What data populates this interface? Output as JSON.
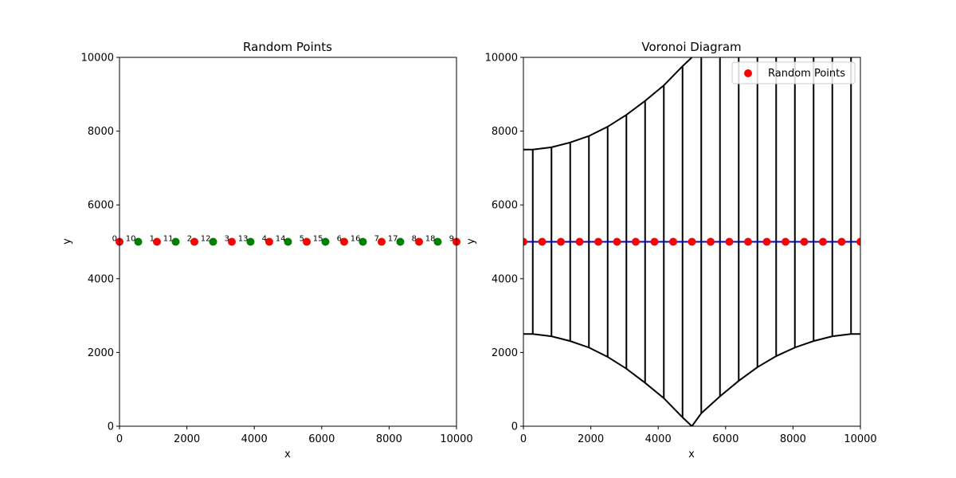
{
  "chart_data": [
    {
      "type": "scatter",
      "title": "Random Points",
      "xlabel": "x",
      "ylabel": "y",
      "xlim": [
        0,
        10000
      ],
      "ylim": [
        0,
        10000
      ],
      "xticks": [
        0,
        2000,
        4000,
        6000,
        8000,
        10000
      ],
      "yticks": [
        0,
        2000,
        4000,
        6000,
        8000,
        10000
      ],
      "grid": false,
      "series": [
        {
          "color": "#ff0000",
          "points": [
            {
              "x": 0,
              "y": 5000,
              "label": "0"
            },
            {
              "x": 1111,
              "y": 5000,
              "label": "1"
            },
            {
              "x": 2222,
              "y": 5000,
              "label": "2"
            },
            {
              "x": 3333,
              "y": 5000,
              "label": "3"
            },
            {
              "x": 4444,
              "y": 5000,
              "label": "4"
            },
            {
              "x": 5556,
              "y": 5000,
              "label": "5"
            },
            {
              "x": 6667,
              "y": 5000,
              "label": "6"
            },
            {
              "x": 7778,
              "y": 5000,
              "label": "7"
            },
            {
              "x": 8889,
              "y": 5000,
              "label": "8"
            },
            {
              "x": 10000,
              "y": 5000,
              "label": "9"
            }
          ]
        },
        {
          "color": "#008000",
          "points": [
            {
              "x": 556,
              "y": 5000,
              "label": "10"
            },
            {
              "x": 1667,
              "y": 5000,
              "label": "11"
            },
            {
              "x": 2778,
              "y": 5000,
              "label": "12"
            },
            {
              "x": 3889,
              "y": 5000,
              "label": "13"
            },
            {
              "x": 5000,
              "y": 5000,
              "label": "14"
            },
            {
              "x": 6111,
              "y": 5000,
              "label": "15"
            },
            {
              "x": 7222,
              "y": 5000,
              "label": "16"
            },
            {
              "x": 8333,
              "y": 5000,
              "label": "17"
            },
            {
              "x": 9444,
              "y": 5000,
              "label": "18"
            }
          ]
        }
      ]
    },
    {
      "type": "scatter",
      "title": "Voronoi Diagram",
      "xlabel": "x",
      "ylabel": "y",
      "xlim": [
        0,
        10000
      ],
      "ylim": [
        0,
        10000
      ],
      "xticks": [
        0,
        2000,
        4000,
        6000,
        8000,
        10000
      ],
      "yticks": [
        0,
        2000,
        4000,
        6000,
        8000,
        10000
      ],
      "grid": false,
      "legend": {
        "location": "top-right",
        "entries": [
          {
            "label": "Random Points",
            "color": "#ff0000"
          }
        ]
      },
      "points": {
        "color": "#ff0000",
        "x": [
          0,
          556,
          1111,
          1667,
          2222,
          2778,
          3333,
          3889,
          4444,
          5000,
          5556,
          6111,
          6667,
          7222,
          7778,
          8333,
          8889,
          9444,
          10000
        ],
        "y": 5000
      },
      "midline": {
        "y": 5000,
        "color": "#0000cc"
      },
      "edges_color": "#000000",
      "vertical_edges": [
        {
          "x": 278,
          "y0": 2500,
          "y1": 7500
        },
        {
          "x": 833,
          "y0": 2438,
          "y1": 7563
        },
        {
          "x": 1389,
          "y0": 2308,
          "y1": 7693
        },
        {
          "x": 1944,
          "y0": 2133,
          "y1": 7868
        },
        {
          "x": 2500,
          "y0": 1880,
          "y1": 8120
        },
        {
          "x": 3056,
          "y0": 1560,
          "y1": 8440
        },
        {
          "x": 3611,
          "y0": 1175,
          "y1": 8820
        },
        {
          "x": 4167,
          "y0": 760,
          "y1": 9240
        },
        {
          "x": 4722,
          "y0": 240,
          "y1": 9760
        },
        {
          "x": 5278,
          "y0": 350,
          "y1": 10000
        },
        {
          "x": 5833,
          "y0": 810,
          "y1": 10000
        },
        {
          "x": 6389,
          "y0": 1230,
          "y1": 10000
        },
        {
          "x": 6944,
          "y0": 1600,
          "y1": 10000
        },
        {
          "x": 7500,
          "y0": 1900,
          "y1": 10000
        },
        {
          "x": 8056,
          "y0": 2133,
          "y1": 10000
        },
        {
          "x": 8611,
          "y0": 2308,
          "y1": 10000
        },
        {
          "x": 9167,
          "y0": 2438,
          "y1": 10000
        },
        {
          "x": 9722,
          "y0": 2500,
          "y1": 10000
        }
      ],
      "upper_boundary": [
        [
          0,
          7500
        ],
        [
          278,
          7500
        ],
        [
          833,
          7563
        ],
        [
          1389,
          7693
        ],
        [
          1944,
          7868
        ],
        [
          2500,
          8120
        ],
        [
          3056,
          8440
        ],
        [
          3611,
          8820
        ],
        [
          4167,
          9240
        ],
        [
          4722,
          9760
        ],
        [
          5000,
          10000
        ]
      ],
      "lower_boundary": [
        [
          0,
          2500
        ],
        [
          278,
          2500
        ],
        [
          833,
          2438
        ],
        [
          1389,
          2308
        ],
        [
          1944,
          2133
        ],
        [
          2500,
          1880
        ],
        [
          3056,
          1560
        ],
        [
          3611,
          1175
        ],
        [
          4167,
          760
        ],
        [
          4722,
          240
        ],
        [
          5000,
          0
        ],
        [
          5278,
          350
        ],
        [
          5833,
          810
        ],
        [
          6389,
          1230
        ],
        [
          6944,
          1600
        ],
        [
          7500,
          1900
        ],
        [
          8056,
          2133
        ],
        [
          8611,
          2308
        ],
        [
          9167,
          2438
        ],
        [
          9722,
          2500
        ],
        [
          10000,
          2500
        ]
      ]
    }
  ]
}
